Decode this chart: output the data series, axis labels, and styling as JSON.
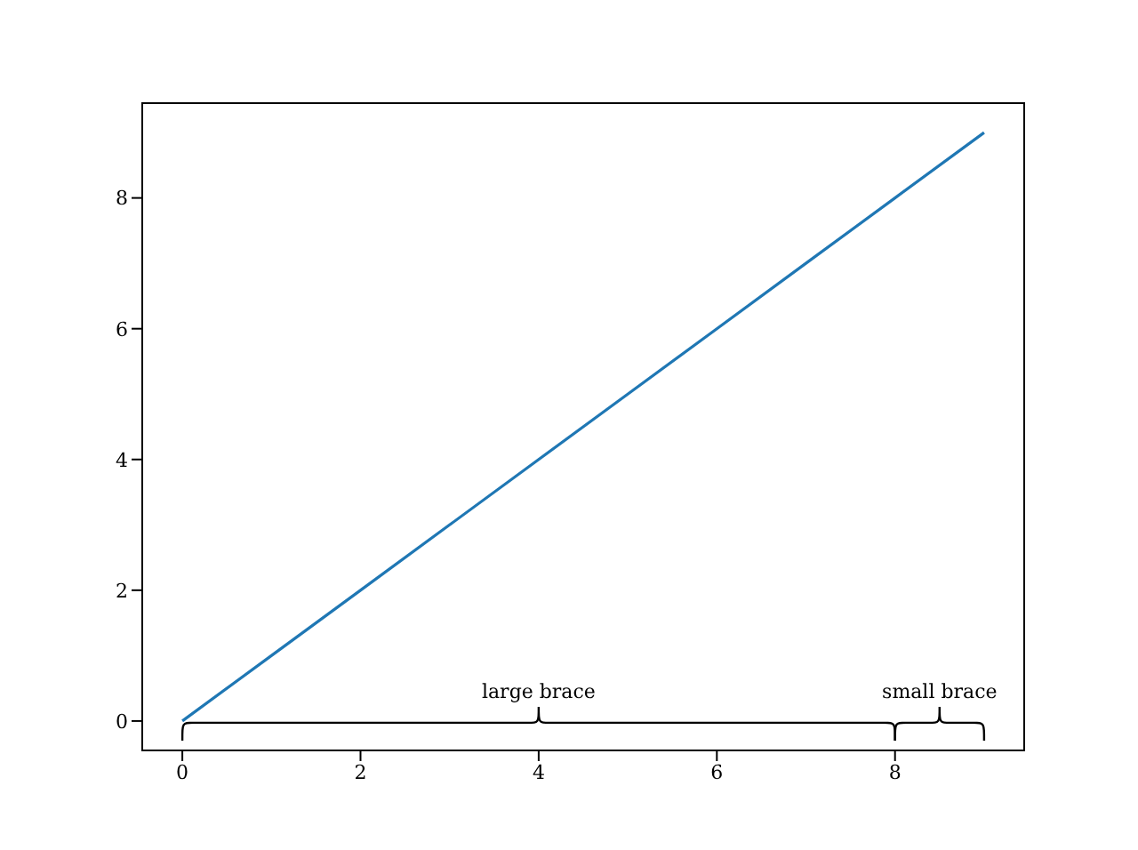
{
  "chart_data": {
    "type": "line",
    "x": [
      0,
      1,
      2,
      3,
      4,
      5,
      6,
      7,
      8,
      9
    ],
    "series": [
      {
        "color": "#1f77b4",
        "values": [
          0,
          1,
          2,
          3,
          4,
          5,
          6,
          7,
          8,
          9
        ]
      }
    ],
    "xlim": [
      -0.45,
      9.45
    ],
    "ylim": [
      -0.45,
      9.45
    ],
    "xticks": [
      0,
      2,
      4,
      6,
      8
    ],
    "yticks": [
      0,
      2,
      4,
      6,
      8
    ],
    "grid": false,
    "legend": false,
    "marker": "none",
    "line_style": "solid",
    "annotations": [
      "large brace",
      "small brace"
    ]
  }
}
